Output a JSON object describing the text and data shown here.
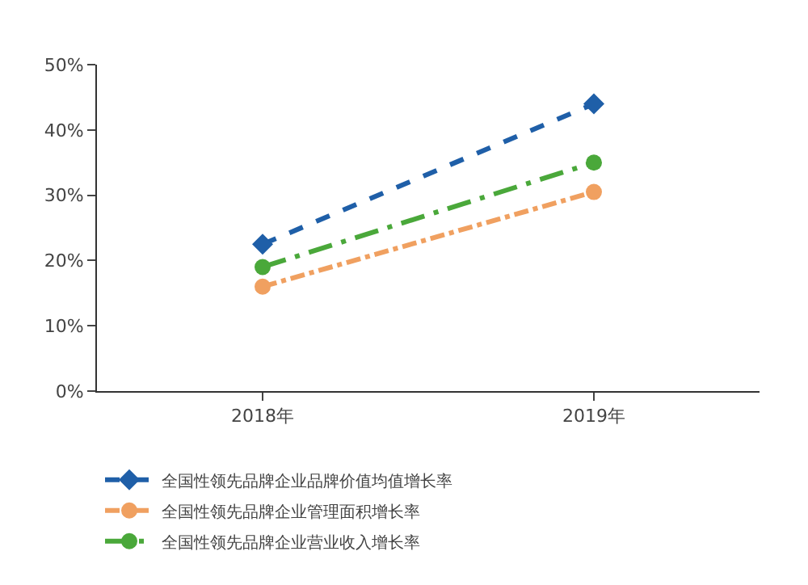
{
  "chart_data": {
    "type": "line",
    "categories": [
      "2018年",
      "2019年"
    ],
    "ylim": [
      0,
      50
    ],
    "yticks": [
      {
        "value": 0,
        "label": "0%"
      },
      {
        "value": 10,
        "label": "10%"
      },
      {
        "value": 20,
        "label": "20%"
      },
      {
        "value": 30,
        "label": "30%"
      },
      {
        "value": 40,
        "label": "40%"
      },
      {
        "value": 50,
        "label": "50%"
      }
    ],
    "legend": "bottom",
    "series": [
      {
        "name": "全国性领先品牌企业品牌价值均值增长率",
        "color": "#1f5fa8",
        "values": [
          22.5,
          44
        ],
        "marker": "diamond",
        "line_style": "dashed"
      },
      {
        "name": "全国性领先品牌企业管理面积增长率",
        "color": "#f0a060",
        "values": [
          16,
          30.5
        ],
        "marker": "circle",
        "line_style": "dashdot"
      },
      {
        "name": "全国性领先品牌企业营业收入增长率",
        "color": "#4aa83a",
        "values": [
          19,
          35
        ],
        "marker": "circle",
        "line_style": "longdashdot"
      }
    ]
  }
}
